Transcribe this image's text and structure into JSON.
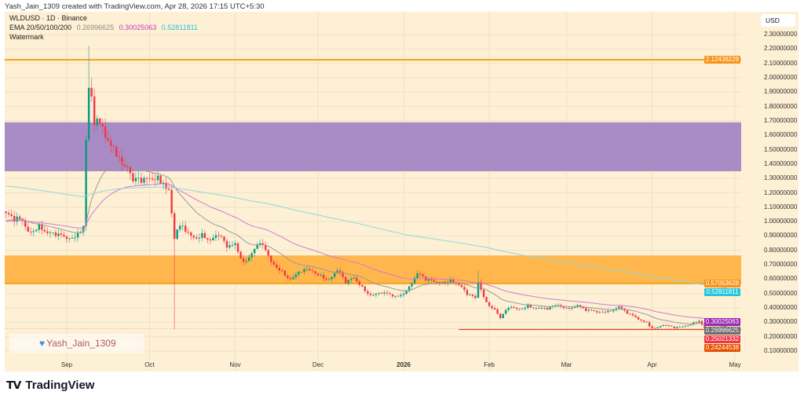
{
  "header": {
    "credit": "Yash_Jain_1309 created with TradingView.com, Apr 28, 2026 17:15 UTC+5:30"
  },
  "legend": {
    "symbol": "WLDUSD · 1D · Binance",
    "ema_label": "EMA 20/50/100/200",
    "ema_values": [
      "0.26996625",
      "0.30025063",
      "0.52811811"
    ],
    "ema_colors": [
      "#8a8a8a",
      "#c239c2",
      "#26c6da"
    ],
    "watermark_label": "Watermark"
  },
  "currency_button": "USD",
  "watermark": {
    "icon": "blue-heart-icon",
    "text": "Yash_Jain_1309"
  },
  "footer": {
    "logo": "TV",
    "brand": "TradingView"
  },
  "chart_data": {
    "type": "candlestick",
    "symbol": "WLDUSD",
    "interval": "1D",
    "ylim": [
      0.05,
      2.4
    ],
    "y_ticks": [
      "2.30000000",
      "2.20000000",
      "2.10000000",
      "2.00000000",
      "1.90000000",
      "1.80000000",
      "1.70000000",
      "1.60000000",
      "1.50000000",
      "1.40000000",
      "1.30000000",
      "1.20000000",
      "1.10000000",
      "1.00000000",
      "0.90000000",
      "0.80000000",
      "0.70000000",
      "0.60000000",
      "0.50000000",
      "0.40000000",
      "0.30000000",
      "0.20000000",
      "0.10000000"
    ],
    "x_ticks": [
      {
        "label": "Sep",
        "date": "2025-09-01"
      },
      {
        "label": "Oct",
        "date": "2025-10-01"
      },
      {
        "label": "Nov",
        "date": "2025-11-01"
      },
      {
        "label": "Dec",
        "date": "2025-12-01"
      },
      {
        "label": "2026",
        "date": "2026-01-01",
        "bold": true
      },
      {
        "label": "Feb",
        "date": "2026-02-01"
      },
      {
        "label": "Mar",
        "date": "2026-03-01"
      },
      {
        "label": "Apr",
        "date": "2026-04-01"
      },
      {
        "label": "May",
        "date": "2026-05-01"
      }
    ],
    "colors": {
      "up": "#089981",
      "down": "#f23645"
    },
    "close_anchors": [
      [
        "2025-08-10",
        1.06
      ],
      [
        "2025-08-13",
        1.0
      ],
      [
        "2025-08-15",
        1.02
      ],
      [
        "2025-08-18",
        0.93
      ],
      [
        "2025-08-22",
        0.98
      ],
      [
        "2025-08-25",
        0.92
      ],
      [
        "2025-08-28",
        0.9
      ],
      [
        "2025-09-01",
        0.88
      ],
      [
        "2025-09-05",
        0.92
      ],
      [
        "2025-09-07",
        0.97
      ],
      [
        "2025-09-08",
        1.57
      ],
      [
        "2025-09-09",
        1.93
      ],
      [
        "2025-09-10",
        1.87
      ],
      [
        "2025-09-11",
        1.67
      ],
      [
        "2025-09-13",
        1.68
      ],
      [
        "2025-09-15",
        1.58
      ],
      [
        "2025-09-18",
        1.52
      ],
      [
        "2025-09-20",
        1.45
      ],
      [
        "2025-09-23",
        1.38
      ],
      [
        "2025-09-25",
        1.28
      ],
      [
        "2025-09-28",
        1.27
      ],
      [
        "2025-10-01",
        1.3
      ],
      [
        "2025-10-04",
        1.32
      ],
      [
        "2025-10-06",
        1.27
      ],
      [
        "2025-10-08",
        1.22
      ],
      [
        "2025-10-10",
        0.88
      ],
      [
        "2025-10-12",
        0.97
      ],
      [
        "2025-10-14",
        0.93
      ],
      [
        "2025-10-17",
        0.89
      ],
      [
        "2025-10-20",
        0.92
      ],
      [
        "2025-10-23",
        0.87
      ],
      [
        "2025-10-26",
        0.9
      ],
      [
        "2025-10-29",
        0.82
      ],
      [
        "2025-11-01",
        0.85
      ],
      [
        "2025-11-04",
        0.72
      ],
      [
        "2025-11-07",
        0.78
      ],
      [
        "2025-11-10",
        0.85
      ],
      [
        "2025-11-14",
        0.72
      ],
      [
        "2025-11-18",
        0.66
      ],
      [
        "2025-11-21",
        0.6
      ],
      [
        "2025-11-25",
        0.65
      ],
      [
        "2025-11-28",
        0.66
      ],
      [
        "2025-12-02",
        0.63
      ],
      [
        "2025-12-05",
        0.6
      ],
      [
        "2025-12-08",
        0.66
      ],
      [
        "2025-12-11",
        0.57
      ],
      [
        "2025-12-14",
        0.61
      ],
      [
        "2025-12-17",
        0.55
      ],
      [
        "2025-12-20",
        0.49
      ],
      [
        "2025-12-24",
        0.5
      ],
      [
        "2025-12-28",
        0.48
      ],
      [
        "2025-12-31",
        0.49
      ],
      [
        "2026-01-03",
        0.55
      ],
      [
        "2026-01-06",
        0.64
      ],
      [
        "2026-01-09",
        0.59
      ],
      [
        "2026-01-12",
        0.58
      ],
      [
        "2026-01-15",
        0.58
      ],
      [
        "2026-01-18",
        0.6
      ],
      [
        "2026-01-21",
        0.56
      ],
      [
        "2026-01-24",
        0.49
      ],
      [
        "2026-01-27",
        0.47
      ],
      [
        "2026-01-28",
        0.58
      ],
      [
        "2026-01-31",
        0.44
      ],
      [
        "2026-02-03",
        0.39
      ],
      [
        "2026-02-05",
        0.33
      ],
      [
        "2026-02-08",
        0.4
      ],
      [
        "2026-02-12",
        0.39
      ],
      [
        "2026-02-15",
        0.42
      ],
      [
        "2026-02-18",
        0.4
      ],
      [
        "2026-02-22",
        0.39
      ],
      [
        "2026-02-26",
        0.42
      ],
      [
        "2026-03-01",
        0.4
      ],
      [
        "2026-03-05",
        0.42
      ],
      [
        "2026-03-08",
        0.38
      ],
      [
        "2026-03-12",
        0.37
      ],
      [
        "2026-03-16",
        0.38
      ],
      [
        "2026-03-20",
        0.41
      ],
      [
        "2026-03-23",
        0.36
      ],
      [
        "2026-03-27",
        0.32
      ],
      [
        "2026-03-30",
        0.3
      ],
      [
        "2026-04-01",
        0.26
      ],
      [
        "2026-04-05",
        0.28
      ],
      [
        "2026-04-09",
        0.26
      ],
      [
        "2026-04-12",
        0.27
      ],
      [
        "2026-04-16",
        0.3
      ],
      [
        "2026-04-18",
        0.31
      ],
      [
        "2026-04-20",
        0.26
      ],
      [
        "2026-04-24",
        0.255
      ],
      [
        "2026-04-28",
        0.25
      ]
    ],
    "wick_extremes": [
      {
        "date": "2025-09-09",
        "high": 2.22
      },
      {
        "date": "2025-10-10",
        "low": 0.25
      },
      {
        "date": "2026-01-28",
        "high": 0.66
      }
    ],
    "zones": [
      {
        "name": "resistance-zone",
        "from": 1.35,
        "to": 1.69,
        "color": "#a98cc5"
      },
      {
        "name": "support-zone",
        "from": 0.575,
        "to": 0.765,
        "color": "#ffb74d"
      }
    ],
    "horizontal_lines": [
      {
        "name": "resistance-line",
        "price": 2.12438229,
        "color": "#f7a21b"
      },
      {
        "name": "support-line",
        "price": 0.57053628,
        "color": "#f7a21b"
      },
      {
        "name": "current-low-line",
        "price": 0.25021332,
        "color": "#e04a1a",
        "from_date": "2026-01-21"
      }
    ],
    "price_badges": [
      {
        "value": "2.12438229",
        "price": 2.12438229,
        "color": "#f7931a"
      },
      {
        "value": "0.57053628",
        "price": 0.57053628,
        "color": "#f7931a"
      },
      {
        "value": "0.52811811",
        "price": 0.52811811,
        "color": "#26c6da"
      },
      {
        "value": "0.30025063",
        "price": 0.30025063,
        "color": "#9c27b0"
      },
      {
        "value": "0.26996625",
        "price": 0.26996625,
        "color": "#6b6b6b"
      },
      {
        "value": "0.25021332",
        "price": 0.25021332,
        "color": "#f23645"
      },
      {
        "value": "0.24244538",
        "price": 0.24244538,
        "color": "#e65100"
      }
    ],
    "ema_series": [
      {
        "name": "EMA 20",
        "color": "#9a9a9a",
        "last": 0.26996625
      },
      {
        "name": "EMA 50",
        "color": "#d17ad1",
        "last": 0.30025063
      },
      {
        "name": "EMA 200",
        "color": "#8fd9dd",
        "last": 0.52811811
      }
    ]
  }
}
